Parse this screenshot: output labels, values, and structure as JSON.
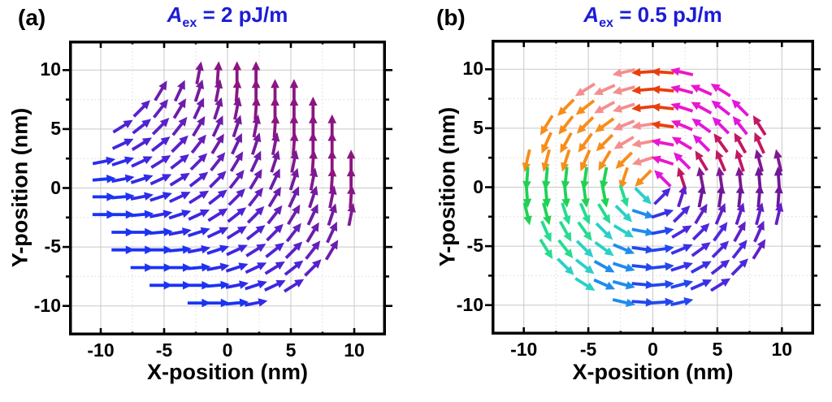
{
  "styles": {
    "title_color": "#1C1CD6",
    "frame_color": "#000000",
    "grid_major": "#c8c8c8",
    "grid_minor": "#d9d9d9",
    "text_color": "#000000",
    "background": "#ffffff"
  },
  "chart_data": [
    {
      "type": "quiver",
      "panel_label": "(a)",
      "title": {
        "var": "A",
        "sub": "ex",
        "rest": " = 2 pJ/m"
      },
      "xlabel": "X-position (nm)",
      "ylabel": "Y-position (nm)",
      "xlim": [
        -12.5,
        12.5
      ],
      "ylim": [
        -12.5,
        12.5
      ],
      "major_ticks": [
        -10,
        -5,
        0,
        5,
        10
      ],
      "minor_ticks": [
        -7.5,
        -2.5,
        2.5,
        7.5
      ],
      "tick_labels": [
        "-10",
        "-5",
        "0",
        "5",
        "10"
      ],
      "grid": "major-solid minor-dotted",
      "arrow_length_nm": 1.8,
      "palette": [
        [
          0,
          "#1B33F2"
        ],
        [
          10,
          "#2E2BEA"
        ],
        [
          20,
          "#3F27E0"
        ],
        [
          30,
          "#4D23D6"
        ],
        [
          39,
          "#5A20CB"
        ],
        [
          49,
          "#6420BC"
        ],
        [
          59,
          "#6C1DAC"
        ],
        [
          68,
          "#741B9E"
        ],
        [
          77,
          "#7F1991"
        ],
        [
          86,
          "#8C1580"
        ]
      ],
      "rows": [
        {
          "y": 9.75,
          "x": [
            -2.25,
            -0.75,
            0.75,
            2.25
          ],
          "angles": [
            79,
            86,
            90,
            90
          ]
        },
        {
          "y": 8.25,
          "x": [
            -5.25,
            -3.75,
            -2.25,
            -0.75,
            0.75,
            2.25,
            3.75,
            5.25
          ],
          "angles": [
            59,
            65,
            72,
            79,
            86,
            90,
            90,
            90
          ]
        },
        {
          "y": 6.75,
          "x": [
            -6.75,
            -5.25,
            -3.75,
            -2.25,
            -0.75,
            0.75,
            2.25,
            3.75,
            5.25,
            6.75
          ],
          "angles": [
            45,
            52,
            59,
            65,
            72,
            79,
            86,
            90,
            90,
            90
          ]
        },
        {
          "y": 5.25,
          "x": [
            -8.25,
            -6.75,
            -5.25,
            -3.75,
            -2.25,
            -0.75,
            0.75,
            2.25,
            3.75,
            5.25,
            6.75,
            8.25
          ],
          "angles": [
            32,
            38,
            45,
            52,
            59,
            65,
            72,
            79,
            86,
            90,
            90,
            90
          ]
        },
        {
          "y": 3.75,
          "x": [
            -8.25,
            -6.75,
            -5.25,
            -3.75,
            -2.25,
            -0.75,
            0.75,
            2.25,
            3.75,
            5.25,
            6.75,
            8.25
          ],
          "angles": [
            25,
            32,
            38,
            45,
            52,
            59,
            65,
            72,
            79,
            86,
            90,
            90
          ]
        },
        {
          "y": 2.25,
          "x": [
            -9.75,
            -8.25,
            -6.75,
            -5.25,
            -3.75,
            -2.25,
            -0.75,
            0.75,
            2.25,
            3.75,
            5.25,
            6.75,
            8.25,
            9.75
          ],
          "angles": [
            11,
            18,
            25,
            32,
            38,
            45,
            52,
            59,
            65,
            72,
            79,
            86,
            90,
            90
          ]
        },
        {
          "y": 0.75,
          "x": [
            -9.75,
            -8.25,
            -6.75,
            -5.25,
            -3.75,
            -2.25,
            -0.75,
            0.75,
            2.25,
            3.75,
            5.25,
            6.75,
            8.25,
            9.75
          ],
          "angles": [
            5,
            11,
            18,
            25,
            32,
            38,
            45,
            52,
            59,
            65,
            72,
            79,
            86,
            90
          ]
        },
        {
          "y": -0.75,
          "x": [
            -9.75,
            -8.25,
            -6.75,
            -5.25,
            -3.75,
            -2.25,
            -0.75,
            0.75,
            2.25,
            3.75,
            5.25,
            6.75,
            8.25,
            9.75
          ],
          "angles": [
            0,
            5,
            11,
            18,
            25,
            32,
            38,
            45,
            52,
            59,
            65,
            72,
            79,
            86
          ]
        },
        {
          "y": -2.25,
          "x": [
            -9.75,
            -8.25,
            -6.75,
            -5.25,
            -3.75,
            -2.25,
            -0.75,
            0.75,
            2.25,
            3.75,
            5.25,
            6.75,
            8.25,
            9.75
          ],
          "angles": [
            0,
            0,
            5,
            11,
            18,
            25,
            32,
            38,
            45,
            52,
            59,
            65,
            72,
            79
          ]
        },
        {
          "y": -3.75,
          "x": [
            -8.25,
            -6.75,
            -5.25,
            -3.75,
            -2.25,
            -0.75,
            0.75,
            2.25,
            3.75,
            5.25,
            6.75,
            8.25
          ],
          "angles": [
            0,
            0,
            5,
            11,
            18,
            25,
            32,
            38,
            45,
            52,
            59,
            65
          ]
        },
        {
          "y": -5.25,
          "x": [
            -8.25,
            -6.75,
            -5.25,
            -3.75,
            -2.25,
            -0.75,
            0.75,
            2.25,
            3.75,
            5.25,
            6.75,
            8.25
          ],
          "angles": [
            0,
            0,
            0,
            5,
            11,
            18,
            25,
            32,
            38,
            45,
            52,
            59
          ]
        },
        {
          "y": -6.75,
          "x": [
            -6.75,
            -5.25,
            -3.75,
            -2.25,
            -0.75,
            0.75,
            2.25,
            3.75,
            5.25,
            6.75
          ],
          "angles": [
            0,
            0,
            0,
            5,
            11,
            18,
            25,
            32,
            38,
            45
          ]
        },
        {
          "y": -8.25,
          "x": [
            -5.25,
            -3.75,
            -2.25,
            -0.75,
            0.75,
            2.25,
            3.75,
            5.25
          ],
          "angles": [
            0,
            0,
            0,
            5,
            11,
            18,
            25,
            32
          ]
        },
        {
          "y": -9.75,
          "x": [
            -2.25,
            -0.75,
            0.75,
            2.25
          ],
          "angles": [
            0,
            0,
            5,
            11
          ]
        }
      ]
    },
    {
      "type": "quiver",
      "panel_label": "(b)",
      "title": {
        "var": "A",
        "sub": "ex",
        "rest": " = 0.5 pJ/m"
      },
      "xlabel": "X-position (nm)",
      "ylabel": "Y-position (nm)",
      "xlim": [
        -12.5,
        12.5
      ],
      "ylim": [
        -12.5,
        12.5
      ],
      "major_ticks": [
        -10,
        -5,
        0,
        5,
        10
      ],
      "minor_ticks": [
        -7.5,
        -2.5,
        2.5,
        7.5
      ],
      "tick_labels": [
        "-10",
        "-5",
        "0",
        "5",
        "10"
      ],
      "grid": "major-solid minor-dotted",
      "arrow_length_nm": 1.8,
      "palette": [
        [
          0,
          "#2247EE"
        ],
        [
          18,
          "#3A31E6"
        ],
        [
          31,
          "#4E28DC"
        ],
        [
          55,
          "#6120C6"
        ],
        [
          78,
          "#6E1799"
        ],
        [
          96,
          "#801891"
        ],
        [
          108,
          "#C31762"
        ],
        [
          128,
          "#E315DE"
        ],
        [
          148,
          "#EA16CE"
        ],
        [
          171,
          "#E8400D"
        ],
        [
          188,
          "#F58E8E"
        ],
        [
          213,
          "#F78D1A"
        ],
        [
          258,
          "#1FD254"
        ],
        [
          288,
          "#25DC92"
        ],
        [
          311,
          "#2AD0C8"
        ],
        [
          331,
          "#1F8CEC"
        ],
        [
          351,
          "#2247EE"
        ]
      ],
      "rows": [
        {
          "y": 9.75,
          "x": [
            -2.25,
            -0.75,
            0.75,
            2.25
          ],
          "angles": [
            193,
            184,
            176,
            167
          ]
        },
        {
          "y": 8.25,
          "x": [
            -5.25,
            -3.75,
            -2.25,
            -0.75,
            0.75,
            2.25,
            3.75,
            5.25
          ],
          "angles": [
            212,
            204,
            195,
            185,
            175,
            165,
            156,
            148
          ]
        },
        {
          "y": 6.75,
          "x": [
            -6.75,
            -5.25,
            -3.75,
            -2.25,
            -0.75,
            0.75,
            2.25,
            3.75,
            5.25,
            6.75
          ],
          "angles": [
            225,
            218,
            209,
            198,
            186,
            174,
            162,
            151,
            142,
            135
          ]
        },
        {
          "y": 5.25,
          "x": [
            -8.25,
            -6.75,
            -5.25,
            -3.75,
            -2.25,
            -0.75,
            0.75,
            2.25,
            3.75,
            5.25,
            6.75,
            8.25
          ],
          "angles": [
            238,
            232,
            225,
            216,
            203,
            188,
            172,
            157,
            144,
            135,
            128,
            122
          ]
        },
        {
          "y": 3.75,
          "x": [
            -8.25,
            -6.75,
            -5.25,
            -3.75,
            -2.25,
            -0.75,
            0.75,
            2.25,
            3.75,
            5.25,
            6.75,
            8.25
          ],
          "angles": [
            246,
            241,
            234,
            225,
            211,
            191,
            169,
            149,
            135,
            126,
            119,
            114
          ]
        },
        {
          "y": 2.25,
          "x": [
            -9.75,
            -8.25,
            -6.75,
            -5.25,
            -3.75,
            -2.25,
            -0.75,
            0.75,
            2.25,
            3.75,
            5.25,
            6.75,
            8.25,
            9.75
          ],
          "angles": [
            257,
            255,
            252,
            247,
            239,
            225,
            198,
            162,
            135,
            121,
            113,
            108,
            105,
            103
          ]
        },
        {
          "y": 0.75,
          "x": [
            -9.75,
            -8.25,
            -6.75,
            -5.25,
            -3.75,
            -2.25,
            -0.75,
            0.75,
            2.25,
            3.75,
            5.25,
            6.75,
            8.25,
            9.75
          ],
          "angles": [
            266,
            265,
            264,
            262,
            259,
            252,
            225,
            135,
            108,
            101,
            98,
            96,
            95,
            94
          ]
        },
        {
          "y": -0.75,
          "x": [
            -9.75,
            -8.25,
            -6.75,
            -5.25,
            -3.75,
            -2.25,
            -0.75,
            0.75,
            2.25,
            3.75,
            5.25,
            6.75,
            8.25,
            9.75
          ],
          "angles": [
            274,
            275,
            276,
            278,
            281,
            288,
            315,
            45,
            72,
            79,
            82,
            84,
            85,
            86
          ]
        },
        {
          "y": -2.25,
          "x": [
            -9.75,
            -8.25,
            -6.75,
            -5.25,
            -3.75,
            -2.25,
            -0.75,
            0.75,
            2.25,
            3.75,
            5.25,
            6.75,
            8.25,
            9.75
          ],
          "angles": [
            283,
            285,
            288,
            293,
            301,
            315,
            342,
            18,
            45,
            59,
            67,
            72,
            75,
            77
          ]
        },
        {
          "y": -3.75,
          "x": [
            -8.25,
            -6.75,
            -5.25,
            -3.75,
            -2.25,
            -0.75,
            0.75,
            2.25,
            3.75,
            5.25,
            6.75,
            8.25
          ],
          "angles": [
            294,
            299,
            306,
            315,
            329,
            349,
            11,
            31,
            45,
            54,
            61,
            66
          ]
        },
        {
          "y": -5.25,
          "x": [
            -8.25,
            -6.75,
            -5.25,
            -3.75,
            -2.25,
            -0.75,
            0.75,
            2.25,
            3.75,
            5.25,
            6.75,
            8.25
          ],
          "angles": [
            302,
            308,
            315,
            324,
            337,
            352,
            8,
            23,
            36,
            45,
            52,
            58
          ]
        },
        {
          "y": -6.75,
          "x": [
            -6.75,
            -5.25,
            -3.75,
            -2.25,
            -0.75,
            0.75,
            2.25,
            3.75,
            5.25,
            6.75
          ],
          "angles": [
            315,
            322,
            331,
            342,
            354,
            6,
            18,
            29,
            38,
            45
          ]
        },
        {
          "y": -8.25,
          "x": [
            -5.25,
            -3.75,
            -2.25,
            -0.75,
            0.75,
            2.25,
            3.75,
            5.25
          ],
          "angles": [
            328,
            336,
            345,
            355,
            5,
            15,
            24,
            32
          ]
        },
        {
          "y": -9.75,
          "x": [
            -2.25,
            -0.75,
            0.75,
            2.25
          ],
          "angles": [
            347,
            356,
            4,
            13
          ]
        }
      ]
    }
  ]
}
